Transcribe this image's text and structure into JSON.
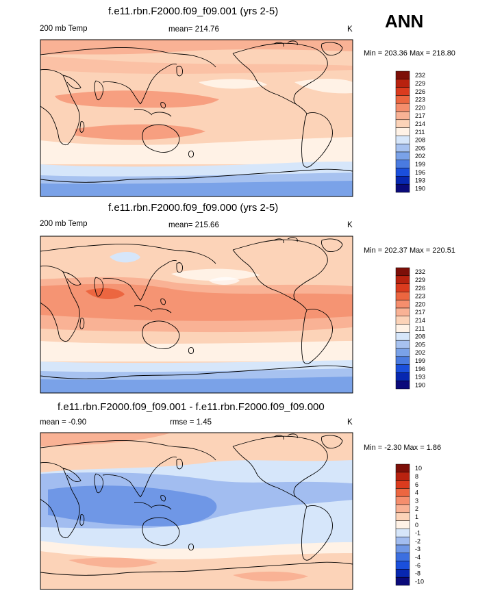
{
  "season": "ANN",
  "colors": {
    "temp": [
      "#0a0a7a",
      "#0727b0",
      "#1a4fdc",
      "#4a7be0",
      "#7aa2e8",
      "#a7c2f0",
      "#d6e6fa",
      "#fff2e6",
      "#fcd3b8",
      "#f9b295",
      "#f58e6d",
      "#ec6640",
      "#db3b1e",
      "#b8220f",
      "#7d0f08"
    ],
    "diff": [
      "#0a0a7a",
      "#0727b0",
      "#1a4fdc",
      "#3c6fe0",
      "#6f97e6",
      "#a2bdf0",
      "#d6e6fa",
      "#fff2e6",
      "#fcd3b8",
      "#f9b295",
      "#f58e6d",
      "#ec6640",
      "#db3b1e",
      "#b8220f",
      "#7d0f08"
    ]
  },
  "panels": [
    {
      "title": "f.e11.rbn.F2000.f09_f09.001 (yrs 2-5)",
      "left_label": "200 mb Temp",
      "center_label": "mean= 214.76",
      "units": "K",
      "minmax": "Min = 203.36 Max = 218.80"
    },
    {
      "title": "f.e11.rbn.F2000.f09_f09.000 (yrs 2-5)",
      "left_label": "200 mb Temp",
      "center_label": "mean= 215.66",
      "units": "K",
      "minmax": "Min = 202.37 Max = 220.51"
    },
    {
      "title": "f.e11.rbn.F2000.f09_f09.001 - f.e11.rbn.F2000.f09_f09.000",
      "left_label": "mean =  -0.90",
      "center_label": "rmse =   1.45",
      "units": "K",
      "minmax": "Min =  -2.30 Max =   1.86"
    }
  ],
  "chart_data": [
    {
      "type": "contour-map",
      "title": "f.e11.rbn.F2000.f09_f09.001 (yrs 2-5)",
      "variable": "200 mb Temp",
      "units": "K",
      "mean": 214.76,
      "min": 203.36,
      "max": 218.8,
      "levels": [
        232,
        229,
        226,
        223,
        220,
        217,
        214,
        211,
        208,
        205,
        202,
        199,
        196,
        193,
        190
      ]
    },
    {
      "type": "contour-map",
      "title": "f.e11.rbn.F2000.f09_f09.000 (yrs 2-5)",
      "variable": "200 mb Temp",
      "units": "K",
      "mean": 215.66,
      "min": 202.37,
      "max": 220.51,
      "levels": [
        232,
        229,
        226,
        223,
        220,
        217,
        214,
        211,
        208,
        205,
        202,
        199,
        196,
        193,
        190
      ]
    },
    {
      "type": "contour-map",
      "title": "f.e11.rbn.F2000.f09_f09.001 - f.e11.rbn.F2000.f09_f09.000",
      "units": "K",
      "mean": -0.9,
      "rmse": 1.45,
      "min": -2.3,
      "max": 1.86,
      "levels": [
        10,
        8,
        6,
        4,
        3,
        2,
        1,
        0,
        -1,
        -2,
        -3,
        -4,
        -6,
        -8,
        -10
      ]
    }
  ]
}
